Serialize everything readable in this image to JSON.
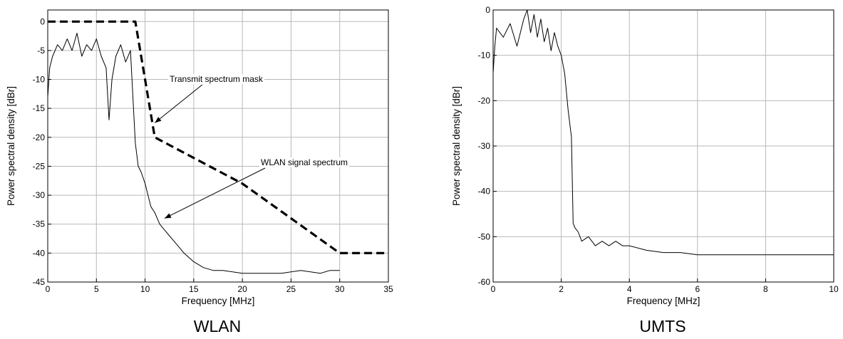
{
  "chart_data": [
    {
      "id": "wlan",
      "type": "line",
      "caption": "WLAN",
      "xlabel": "Frequency [MHz]",
      "ylabel": "Power spectral density [dBr]",
      "xlim": [
        0,
        35
      ],
      "ylim": [
        -45,
        2
      ],
      "xticks": [
        0,
        5,
        10,
        15,
        20,
        25,
        30,
        35
      ],
      "yticks": [
        0,
        -5,
        -10,
        -15,
        -20,
        -25,
        -30,
        -35,
        -40,
        -45
      ],
      "grid": true,
      "series": [
        {
          "style": "dashed",
          "x": [
            0,
            9,
            11,
            20,
            30,
            35
          ],
          "y": [
            0,
            0,
            -20,
            -28,
            -40,
            -40
          ]
        },
        {
          "style": "solid",
          "x": [
            0,
            0.2,
            0.5,
            1,
            1.5,
            2,
            2.5,
            3,
            3.5,
            4,
            4.5,
            5,
            5.5,
            6,
            6.3,
            6.6,
            7,
            7.5,
            8,
            8.5,
            9,
            9.3,
            9.6,
            10,
            10.3,
            10.6,
            11,
            11.5,
            12,
            12.5,
            13,
            13.5,
            14,
            15,
            16,
            17,
            18,
            20,
            22,
            24,
            26,
            28,
            29,
            30
          ],
          "y": [
            -13,
            -8,
            -6,
            -4,
            -5,
            -3,
            -5,
            -2,
            -6,
            -4,
            -5,
            -3,
            -6,
            -8,
            -17,
            -10,
            -6,
            -4,
            -7,
            -5,
            -21,
            -25,
            -26,
            -28,
            -30,
            -32,
            -33,
            -35,
            -36,
            -37,
            -38,
            -39,
            -40,
            -41.5,
            -42.5,
            -43,
            -43,
            -43.5,
            -43.5,
            -43.5,
            -43,
            -43.5,
            -43,
            -43
          ]
        }
      ],
      "annotations": [
        {
          "text": "Transmit spectrum mask",
          "points_to": [
            11,
            -17.5
          ]
        },
        {
          "text": "WLAN signal spectrum",
          "points_to": [
            12,
            -34
          ]
        }
      ]
    },
    {
      "id": "umts",
      "type": "line",
      "caption": "UMTS",
      "xlabel": "Frequency [MHz]",
      "ylabel": "Power spectral density [dBr]",
      "xlim": [
        0,
        10
      ],
      "ylim": [
        -60,
        0
      ],
      "xticks": [
        0,
        2,
        4,
        6,
        8,
        10
      ],
      "yticks": [
        0,
        -10,
        -20,
        -30,
        -40,
        -50,
        -60
      ],
      "grid": true,
      "series": [
        {
          "style": "solid",
          "x": [
            0,
            0.05,
            0.1,
            0.3,
            0.5,
            0.7,
            0.9,
            1.0,
            1.1,
            1.2,
            1.3,
            1.4,
            1.5,
            1.6,
            1.7,
            1.8,
            1.9,
            2.0,
            2.1,
            2.2,
            2.3,
            2.35,
            2.4,
            2.5,
            2.6,
            2.8,
            3.0,
            3.2,
            3.4,
            3.6,
            3.8,
            4.0,
            4.5,
            5,
            5.5,
            6,
            6.5,
            7,
            7.5,
            8,
            8.5,
            9,
            9.5,
            10
          ],
          "y": [
            -14,
            -8,
            -4,
            -6,
            -3,
            -8,
            -2,
            0,
            -5,
            -1,
            -6,
            -2,
            -7,
            -4,
            -9,
            -5,
            -8,
            -10,
            -14,
            -22,
            -28,
            -47,
            -48,
            -49,
            -51,
            -50,
            -52,
            -51,
            -52,
            -51,
            -52,
            -52,
            -53,
            -53.5,
            -53.5,
            -54,
            -54,
            -54,
            -54,
            -54,
            -54,
            -54,
            -54,
            -54
          ]
        }
      ]
    }
  ]
}
